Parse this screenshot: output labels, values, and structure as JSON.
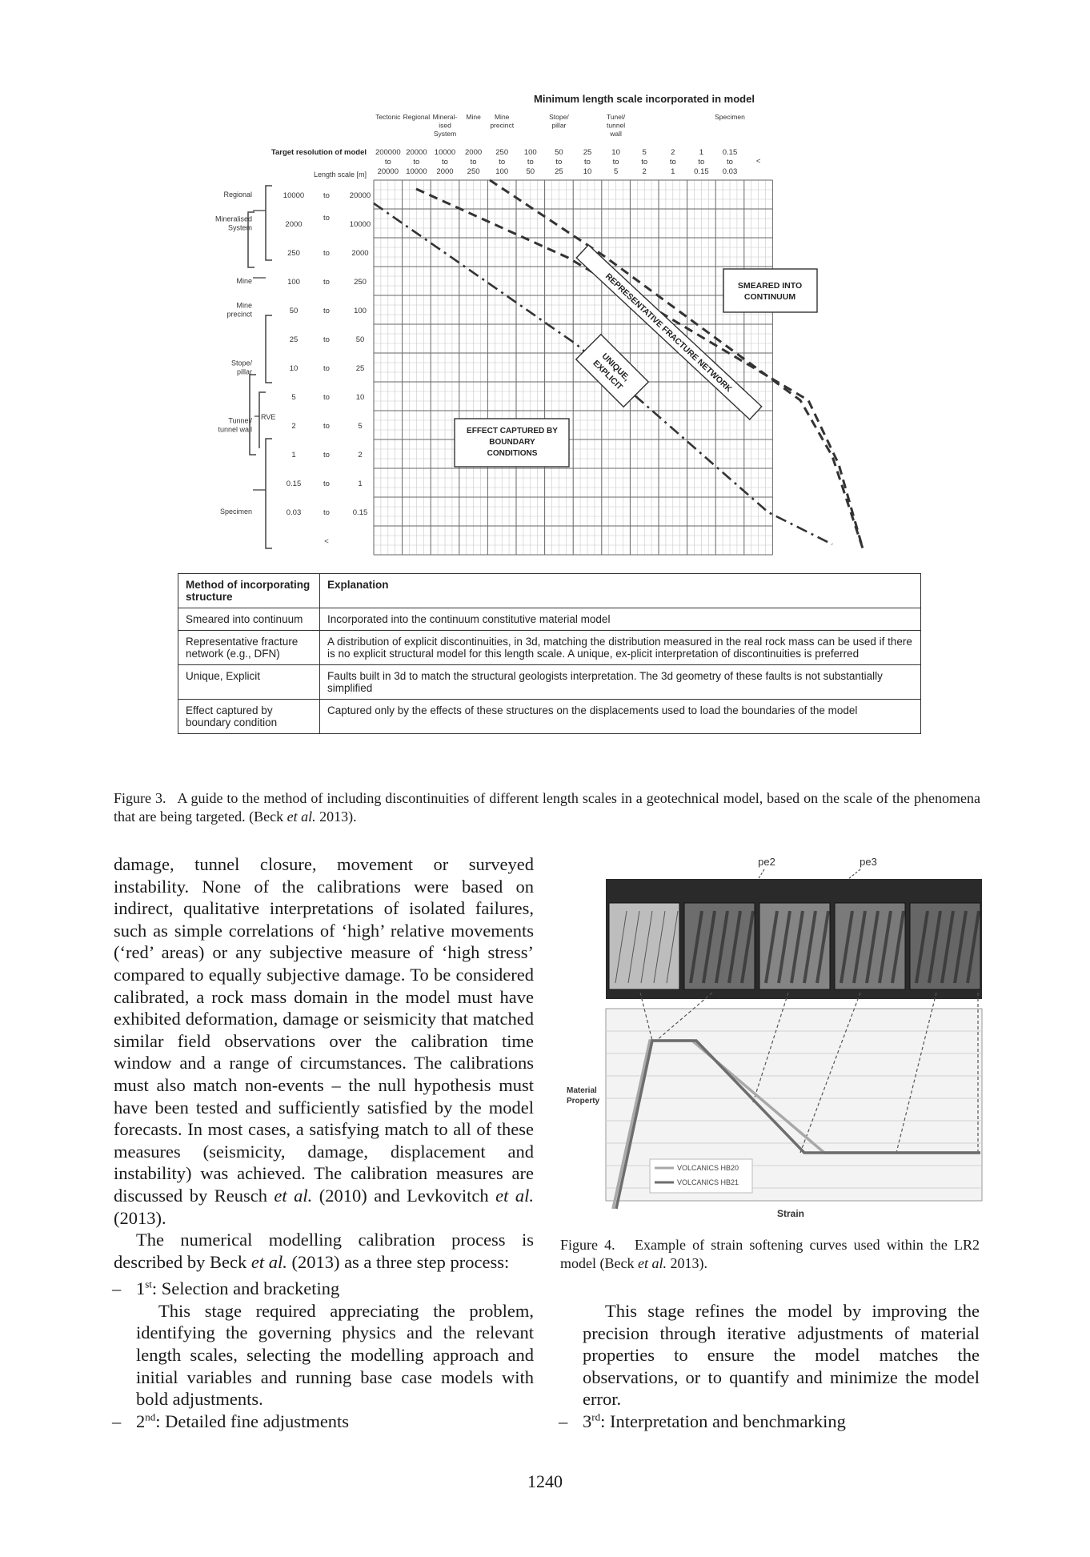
{
  "figure3": {
    "title": "Minimum length scale incorporated in model",
    "column_groups": [
      {
        "col": 0,
        "lines": [
          "Tectonic"
        ]
      },
      {
        "col": 1,
        "lines": [
          "Regional"
        ]
      },
      {
        "col": 2,
        "lines": [
          "Mineral-",
          "ised",
          "System"
        ]
      },
      {
        "col": 3,
        "lines": [
          "Mine"
        ]
      },
      {
        "col": 4,
        "lines": [
          "Mine",
          "precinct"
        ]
      },
      {
        "col": 6,
        "lines": [
          "Stope/",
          "pillar"
        ]
      },
      {
        "col": 8,
        "lines": [
          "Tunel/",
          "tunnel",
          "wall"
        ]
      },
      {
        "col": 12,
        "lines": [
          "Specimen"
        ]
      }
    ],
    "target_resolution_label": "Target resolution of model",
    "length_scale_label": "Length scale [m]",
    "columns": [
      {
        "from": "200000",
        "to_word": "to",
        "to": "20000"
      },
      {
        "from": "20000",
        "to_word": "to",
        "to": "10000"
      },
      {
        "from": "10000",
        "to_word": "to",
        "to": "2000"
      },
      {
        "from": "2000",
        "to_word": "to",
        "to": "250"
      },
      {
        "from": "250",
        "to_word": "to",
        "to": "100"
      },
      {
        "from": "100",
        "to_word": "to",
        "to": "50"
      },
      {
        "from": "50",
        "to_word": "to",
        "to": "25"
      },
      {
        "from": "25",
        "to_word": "to",
        "to": "10"
      },
      {
        "from": "10",
        "to_word": "to",
        "to": "5"
      },
      {
        "from": "5",
        "to_word": "to",
        "to": "2"
      },
      {
        "from": "2",
        "to_word": "to",
        "to": "1"
      },
      {
        "from": "1",
        "to_word": "to",
        "to": "0.15"
      },
      {
        "from": "0.15",
        "to_word": "to",
        "to": "0.03"
      },
      {
        "from": "<",
        "to_word": "",
        "to": ""
      }
    ],
    "rows": [
      {
        "from": "10000",
        "to_word": "to",
        "to": "20000"
      },
      {
        "from": "2000",
        "to_word": "to",
        "to": "10000"
      },
      {
        "from": "250",
        "to_word": "to",
        "to": "2000"
      },
      {
        "from": "100",
        "to_word": "to",
        "to": "250"
      },
      {
        "from": "50",
        "to_word": "to",
        "to": "100"
      },
      {
        "from": "25",
        "to_word": "to",
        "to": "50"
      },
      {
        "from": "10",
        "to_word": "to",
        "to": "25"
      },
      {
        "from": "5",
        "to_word": "to",
        "to": "10"
      },
      {
        "from": "2",
        "to_word": "to",
        "to": "5"
      },
      {
        "from": "1",
        "to_word": "to",
        "to": "2"
      },
      {
        "from": "0.15",
        "to_word": "to",
        "to": "1"
      },
      {
        "from": "0.03",
        "to_word": "to",
        "to": "0.15"
      },
      {
        "from": "",
        "to_word": "<",
        "to": ""
      }
    ],
    "row_groups": [
      {
        "row": 0,
        "lines": [
          "Regional"
        ]
      },
      {
        "row": 1,
        "lines": [
          "Mineralised",
          "System"
        ]
      },
      {
        "row": 3,
        "lines": [
          "Mine"
        ]
      },
      {
        "row": 4,
        "lines": [
          "Mine",
          "precinct"
        ]
      },
      {
        "row": 6,
        "lines": [
          "Stope/",
          "pillar"
        ]
      },
      {
        "row": 8,
        "lines": [
          "Tunnel/",
          "tunnel wall"
        ]
      },
      {
        "row": 11,
        "lines": [
          "Specimen"
        ]
      }
    ],
    "rve_label": "RVE",
    "zone_labels": {
      "smeared": [
        "SMEARED INTO",
        "CONTINUUM"
      ],
      "representative": "REPRESENTATIVE FRACTURE NETWORK",
      "unique": [
        "UNIQUE,",
        "EXPLICIT"
      ],
      "boundary": [
        "EFFECT CAPTURED BY",
        "BOUNDARY",
        "CONDITIONS"
      ]
    },
    "table": {
      "headers": [
        "Method of incorporating structure",
        "Explanation"
      ],
      "rows": [
        [
          "Smeared into continuum",
          "Incorporated into the continuum constitutive material model"
        ],
        [
          "Representative fracture network (e.g., DFN)",
          "A distribution of explicit discontinuities, in 3d, matching the distribution measured in the real rock mass can be used if there is no explicit structural model for this length scale. A unique, ex-plicit interpretation of discontinuities is preferred"
        ],
        [
          "Unique, Explicit",
          "Faults built in 3d to match the structural geologists interpretation. The 3d geometry of these faults is not substantially simplified"
        ],
        [
          "Effect captured by boundary condition",
          "Captured only by the effects of these structures on the displacements used to load the boundaries of the model"
        ]
      ]
    }
  },
  "caption3": {
    "label": "Figure 3.",
    "text": "A guide to the method of including discontinuities of different length scales in a geotechnical model, based on the scale of the phenomena that are being targeted. (Beck ",
    "etal": "et al.",
    "year": " 2013)."
  },
  "figure4": {
    "top_labels": [
      "pe2",
      "pe3"
    ],
    "ylabel": "Material Property",
    "xlabel": "Strain",
    "legend": [
      "VOLCANICS HB20",
      "VOLCANICS HB21"
    ]
  },
  "caption4": {
    "label": "Figure 4.",
    "text": "Example of strain softening curves used within the LR2 model (Beck ",
    "etal": "et al.",
    "year": " 2013)."
  },
  "left_column": {
    "para1_a": "damage, tunnel closure, movement or surveyed instability. None of the calibrations were based on indirect, qualitative interpretations of isolated failures, such as simple correlations of ‘high’ relative movements (‘red’ areas) or any subjective measure of ‘high stress’ compared to equally subjective damage. To be considered calibrated, a rock mass domain in the model must have exhibited deformation, damage or seismicity that matched similar field observations over the calibration time window and a range of circumstances. The calibrations must also match non-events – the null hypothesis must have been tested and sufficiently satisfied by the model forecasts. In most cases, a satisfying match to all of these measures (seismicity, damage, displacement and instability) was achieved. The calibration measures are discussed by Reusch ",
    "para1_etal1": "et al.",
    "para1_b": " (2010) and Levkovitch ",
    "para1_etal2": "et al.",
    "para1_c": " (2013).",
    "para2_a": "The numerical modelling calibration process is described by Beck ",
    "para2_etal": "et al.",
    "para2_b": " (2013) as a three step process:",
    "item1_dash": "–",
    "item1_num": "1",
    "item1_sup": "st",
    "item1_title": ": Selection and bracketing",
    "item1_body": "This stage required appreciating the problem, identifying the governing physics and the relevant length scales, selecting the modelling approach and initial variables and running base case models with bold adjustments.",
    "item2_dash": "–",
    "item2_num": "2",
    "item2_sup": "nd",
    "item2_title": ": Detailed fine adjustments"
  },
  "right_column": {
    "para": "This stage refines the model by improving the precision through iterative adjustments of material properties to ensure the model matches the observations, or to quantify and minimize the model error.",
    "item3_dash": "–",
    "item3_num": "3",
    "item3_sup": "rd",
    "item3_title": ": Interpretation and benchmarking"
  },
  "page_number": "1240"
}
